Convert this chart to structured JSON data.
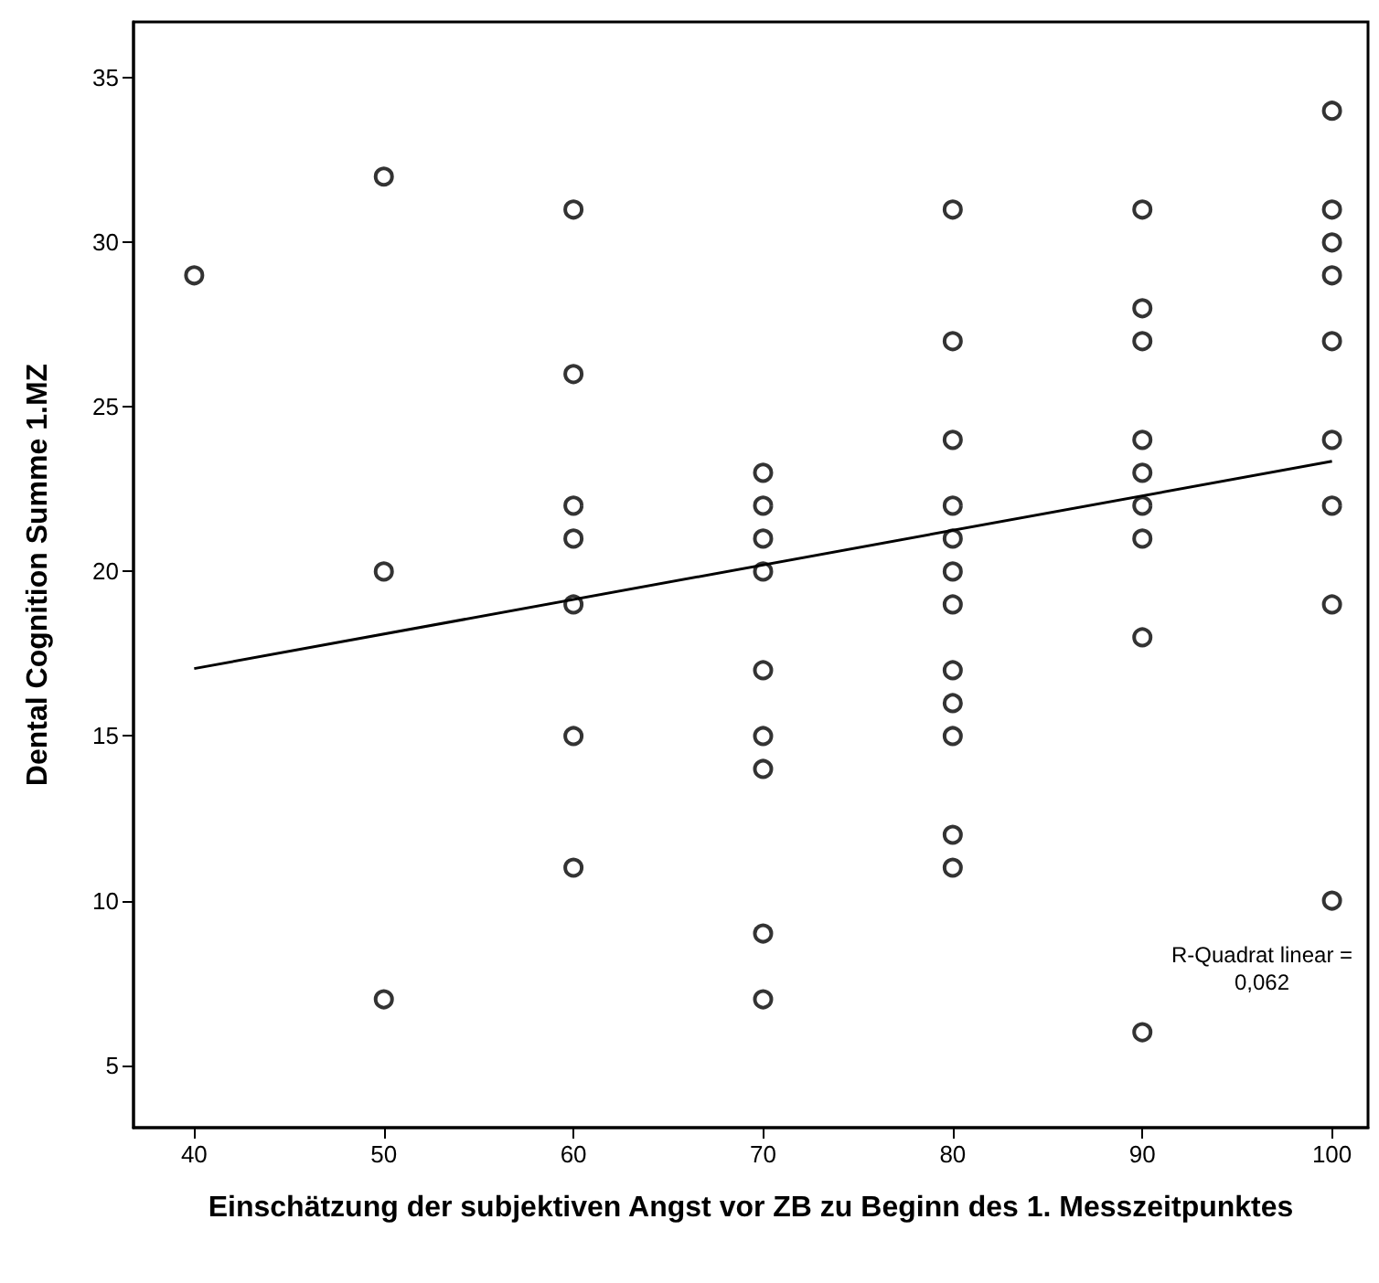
{
  "chart_data": {
    "type": "scatter",
    "xlabel": "Einschätzung der subjektiven Angst vor ZB zu Beginn des 1. Messzeitpunktes",
    "ylabel": "Dental Cognition Summe 1.MZ",
    "grid": false,
    "xlim": [
      36.8,
      101.9
    ],
    "xticks": [
      40,
      50,
      60,
      70,
      80,
      90,
      100
    ],
    "ylim": [
      3.1,
      36.7
    ],
    "yticks": [
      5,
      10,
      15,
      20,
      25,
      30,
      35
    ],
    "annotations": [
      "R-Quadrat linear =\n0,062"
    ],
    "series": [
      {
        "marker": "circle",
        "color": "#000000",
        "x": [
          40,
          50,
          50,
          50,
          60,
          60,
          60,
          60,
          60,
          60,
          60,
          70,
          70,
          70,
          70,
          70,
          70,
          70,
          70,
          70,
          80,
          80,
          80,
          80,
          80,
          80,
          80,
          80,
          80,
          80,
          80,
          80,
          90,
          90,
          90,
          90,
          90,
          90,
          90,
          90,
          90,
          100,
          100,
          100,
          100,
          100,
          100,
          100,
          100,
          100
        ],
        "values": [
          29,
          32,
          20,
          7,
          31,
          26,
          22,
          21,
          19,
          15,
          11,
          23,
          22,
          21,
          20,
          17,
          15,
          14,
          9,
          7,
          31,
          27,
          24,
          22,
          21,
          20,
          19,
          17,
          16,
          15,
          12,
          11,
          31,
          28,
          27,
          24,
          23,
          22,
          21,
          18,
          6,
          34,
          31,
          30,
          29,
          27,
          24,
          22,
          19,
          10
        ]
      },
      {
        "type": "line",
        "color": "#000000",
        "x": [
          40,
          100
        ],
        "values": [
          17.05,
          23.35
        ]
      }
    ]
  }
}
